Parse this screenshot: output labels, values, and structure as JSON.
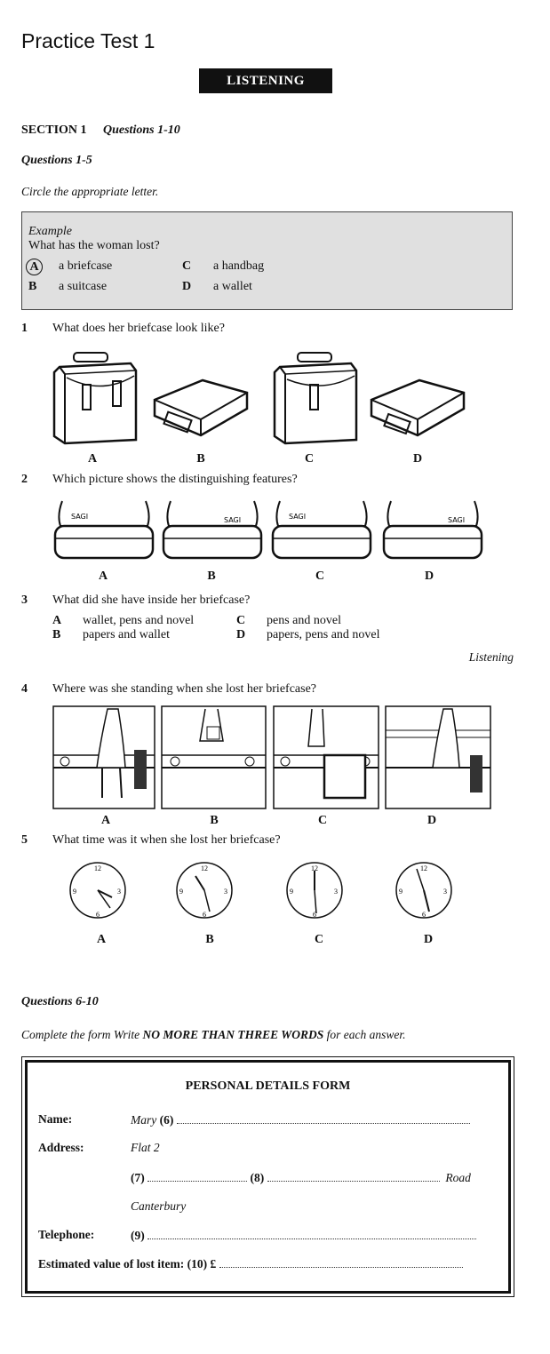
{
  "title": "Practice Test 1",
  "banner": "LISTENING",
  "section": {
    "label": "SECTION 1",
    "range": "Questions 1-10"
  },
  "sub1": {
    "label": "Questions 1-5",
    "instruction": "Circle the appropriate letter."
  },
  "example": {
    "heading": "Example",
    "question": "What has the woman lost?",
    "options": [
      {
        "letter": "A",
        "text": "a briefcase"
      },
      {
        "letter": "C",
        "text": "a handbag"
      },
      {
        "letter": "B",
        "text": "a suitcase"
      },
      {
        "letter": "D",
        "text": "a wallet"
      }
    ]
  },
  "q1": {
    "num": "1",
    "text": "What does her briefcase look like?",
    "labels": [
      "A",
      "B",
      "C",
      "D"
    ]
  },
  "q2": {
    "num": "2",
    "text": "Which picture shows the distinguishing features?",
    "labels": [
      "A",
      "B",
      "C",
      "D"
    ],
    "tag": "SAGI"
  },
  "q3": {
    "num": "3",
    "text": "What did she have inside her briefcase?",
    "options": [
      {
        "letter": "A",
        "text": "wallet, pens and novel"
      },
      {
        "letter": "C",
        "text": "pens and novel"
      },
      {
        "letter": "B",
        "text": "papers and wallet"
      },
      {
        "letter": "D",
        "text": "papers, pens and novel"
      }
    ]
  },
  "running_head": "Listening",
  "q4": {
    "num": "4",
    "text": "Where was she standing when she lost her briefcase?",
    "labels": [
      "A",
      "B",
      "C",
      "D"
    ]
  },
  "q5": {
    "num": "5",
    "text": "What time was it when she lost her briefcase?",
    "labels": [
      "A",
      "B",
      "C",
      "D"
    ]
  },
  "sub2": {
    "label": "Questions 6-10",
    "instruction_pre": "Complete the form Write ",
    "instruction_bold": "NO MORE THAN THREE WORDS",
    "instruction_post": " for each answer."
  },
  "form": {
    "title": "PERSONAL DETAILS FORM",
    "name_label": "Name:",
    "name_value": "Mary",
    "q6": "(6)",
    "address_label": "Address:",
    "address_line1": "Flat 2",
    "q7": "(7)",
    "q8": "(8)",
    "road": "Road",
    "city": "Canterbury",
    "telephone_label": "Telephone:",
    "q9": "(9)",
    "value_label": "Estimated value of lost item: (10) £"
  }
}
